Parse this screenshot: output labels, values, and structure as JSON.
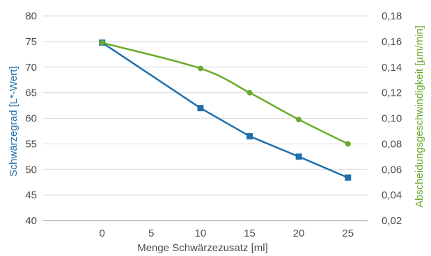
{
  "chart_data": {
    "type": "line",
    "x": [
      0,
      5,
      10,
      15,
      20,
      25
    ],
    "xlabel": "Menge Schwärzezusatz [ml]",
    "ylabel_left": "Schwärzegrad [L*-Wert]",
    "ylabel_right": "Abscheidungsgeschwindigkeit [µm/min]",
    "xlim": [
      -6,
      27
    ],
    "ylim_left": [
      40,
      80
    ],
    "ylim_right": [
      0.02,
      0.18
    ],
    "x_ticks": [
      "0",
      "5",
      "10",
      "15",
      "20",
      "25"
    ],
    "y_left_ticks": [
      "40",
      "45",
      "50",
      "55",
      "60",
      "65",
      "70",
      "75",
      "80"
    ],
    "y_right_ticks": [
      "0,02",
      "0,04",
      "0,06",
      "0,08",
      "0,10",
      "0,12",
      "0,14",
      "0,16",
      "0,18"
    ],
    "grid": true,
    "series": [
      {
        "axis": "left",
        "marker": "square",
        "color": "#1f6fab",
        "x": [
          0,
          10,
          15,
          20,
          25
        ],
        "values": [
          74.8,
          62.0,
          56.5,
          52.5,
          48.4
        ]
      },
      {
        "axis": "right",
        "marker": "circle",
        "color": "#6aaa2a",
        "x": [
          0,
          10,
          15,
          20,
          25
        ],
        "values": [
          0.159,
          0.139,
          0.12,
          0.099,
          0.08
        ]
      }
    ]
  }
}
